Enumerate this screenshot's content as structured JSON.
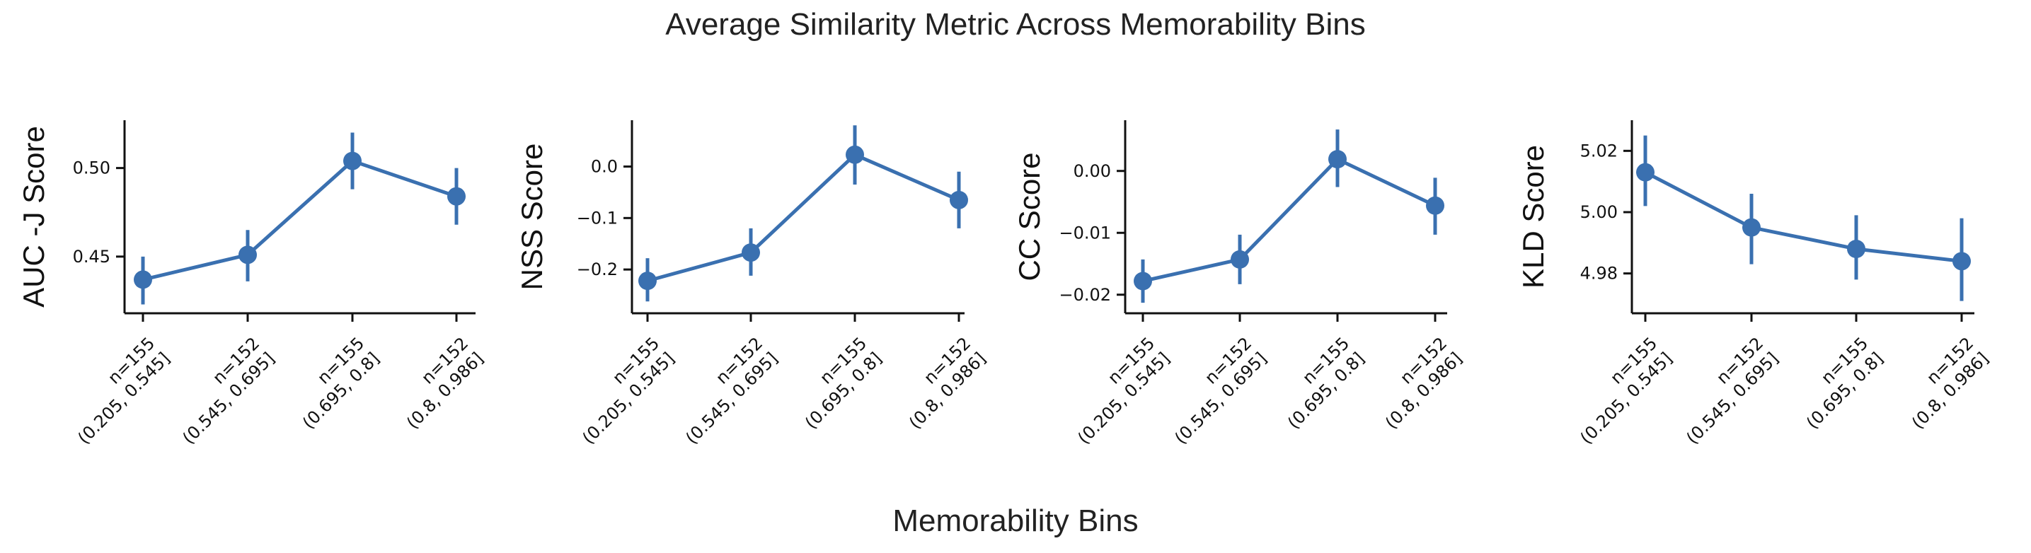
{
  "title": "Average Similarity Metric Across Memorability Bins",
  "xlabel": "Memorability Bins",
  "chart_data": [
    {
      "type": "line",
      "ylabel": "AUC -J Score",
      "categories": [
        "n=155\n(0.205, 0.545]",
        "n=152\n(0.545, 0.695]",
        "n=155\n(0.695, 0.8]",
        "n=152\n(0.8, 0.986]"
      ],
      "values": [
        0.437,
        0.451,
        0.504,
        0.484
      ],
      "err_low": [
        0.423,
        0.436,
        0.488,
        0.468
      ],
      "err_high": [
        0.45,
        0.465,
        0.52,
        0.5
      ],
      "yticks": [
        0.45,
        0.5
      ],
      "ytick_labels": [
        "0.45",
        "0.50"
      ],
      "ylim": [
        0.418,
        0.527
      ],
      "color": "#3a70b0"
    },
    {
      "type": "line",
      "ylabel": "NSS Score",
      "categories": [
        "n=155\n(0.205, 0.545]",
        "n=152\n(0.545, 0.695]",
        "n=155\n(0.695, 0.8]",
        "n=152\n(0.8, 0.986]"
      ],
      "values": [
        -0.222,
        -0.167,
        0.023,
        -0.065
      ],
      "err_low": [
        -0.262,
        -0.212,
        -0.035,
        -0.12
      ],
      "err_high": [
        -0.178,
        -0.12,
        0.08,
        -0.01
      ],
      "yticks": [
        0.0,
        -0.1,
        -0.2
      ],
      "ytick_labels": [
        "0.0",
        "−0.1",
        "−0.2"
      ],
      "ylim": [
        -0.285,
        0.09
      ],
      "color": "#3a70b0"
    },
    {
      "type": "line",
      "ylabel": "CC Score",
      "categories": [
        "n=155\n(0.205, 0.545]",
        "n=152\n(0.545, 0.695]",
        "n=155\n(0.695, 0.8]",
        "n=152\n(0.8, 0.986]"
      ],
      "values": [
        -0.0178,
        -0.0143,
        0.0019,
        -0.0056
      ],
      "err_low": [
        -0.0213,
        -0.0183,
        -0.0026,
        -0.0103
      ],
      "err_high": [
        -0.0143,
        -0.0103,
        0.0067,
        -0.0011
      ],
      "yticks": [
        0.0,
        -0.01,
        -0.02
      ],
      "ytick_labels": [
        "0.00",
        "−0.01",
        "−0.02"
      ],
      "ylim": [
        -0.023,
        0.0082
      ],
      "color": "#3a70b0"
    },
    {
      "type": "line",
      "ylabel": "KLD Score",
      "categories": [
        "n=155\n(0.205, 0.545]",
        "n=152\n(0.545, 0.695]",
        "n=155\n(0.695, 0.8]",
        "n=152\n(0.8, 0.986]"
      ],
      "values": [
        5.013,
        4.995,
        4.988,
        4.984
      ],
      "err_low": [
        5.002,
        4.983,
        4.978,
        4.971
      ],
      "err_high": [
        5.025,
        5.006,
        4.999,
        4.998
      ],
      "yticks": [
        5.02,
        5.0,
        4.98
      ],
      "ytick_labels": [
        "5.02",
        "5.00",
        "4.98"
      ],
      "ylim": [
        4.967,
        5.03
      ],
      "color": "#3a70b0"
    }
  ]
}
